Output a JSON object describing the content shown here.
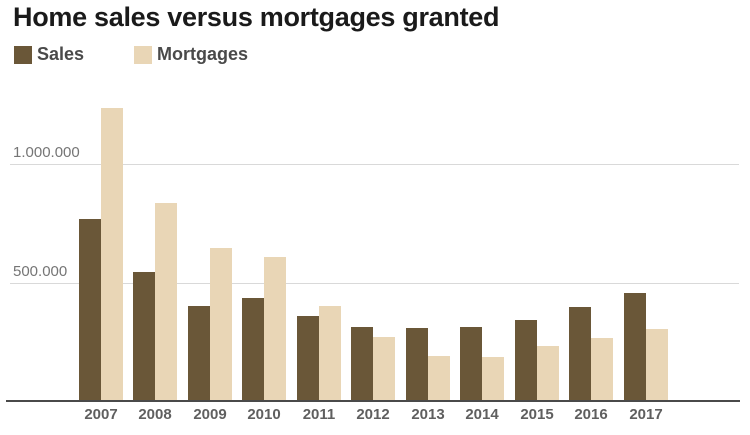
{
  "chart_data": {
    "type": "bar",
    "title": "Home sales versus mortgages granted",
    "categories": [
      "2007",
      "2008",
      "2009",
      "2010",
      "2011",
      "2012",
      "2013",
      "2014",
      "2015",
      "2016",
      "2017"
    ],
    "series": [
      {
        "name": "Sales",
        "color": "#6a5738",
        "values": [
          770000,
          545000,
          405000,
          435000,
          360000,
          315000,
          310000,
          315000,
          345000,
          400000,
          460000
        ]
      },
      {
        "name": "Mortgages",
        "color": "#e9d6b6",
        "values": [
          1235000,
          835000,
          645000,
          610000,
          405000,
          275000,
          195000,
          190000,
          235000,
          270000,
          305000
        ]
      }
    ],
    "xlabel": "",
    "ylabel": "",
    "ylim": [
      0,
      1270000
    ],
    "yticks": [
      {
        "label": "500.000",
        "value": 500000
      },
      {
        "label": "1.000.000",
        "value": 1000000
      }
    ],
    "grid": true,
    "legend_position": "top-left"
  },
  "colors": {
    "sales_bar": "#6a5738",
    "mortgages_bar": "#e9d6b6",
    "title_text": "#1a1a1a",
    "legend_text": "#4a4a4a",
    "y_axis_text": "#757575",
    "x_axis_text": "#5f5f5f",
    "gridline": "#d9d9d9",
    "baseline": "#4a4a4a",
    "background": "#ffffff"
  }
}
